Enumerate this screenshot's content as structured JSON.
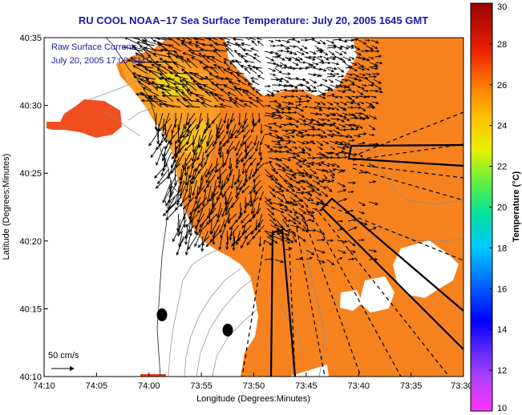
{
  "chart_data": {
    "type": "heatmap",
    "title": "RU COOL  NOAA−17  Sea Surface Temperature:  July 20, 2005 1645 GMT",
    "xlabel": "Longitude (Degrees:Minutes)",
    "ylabel": "Latitude (Degrees:Minutes)",
    "x_ticks": [
      "74:10",
      "74:05",
      "74:00",
      "73:55",
      "73:50",
      "73:45",
      "73:40",
      "73:35",
      "73:30"
    ],
    "y_ticks": [
      "40:10",
      "40:15",
      "40:20",
      "40:25",
      "40:30",
      "40:35"
    ],
    "xlim_minutes_west": [
      10,
      -30
    ],
    "ylim_minutes_north": [
      10,
      35
    ],
    "colorbar": {
      "label": "Temperature (°C)",
      "range": [
        10,
        30
      ],
      "ticks": [
        "10",
        "12",
        "14",
        "16",
        "18",
        "20",
        "22",
        "24",
        "26",
        "28",
        "30"
      ]
    },
    "annotations": {
      "current_label_line1": "Raw Surface Current:",
      "current_label_line2": "July 20, 2005 17:00 GMT",
      "scale_label": "50 cm/s"
    },
    "dominant_sst_celsius": 25.5
  }
}
